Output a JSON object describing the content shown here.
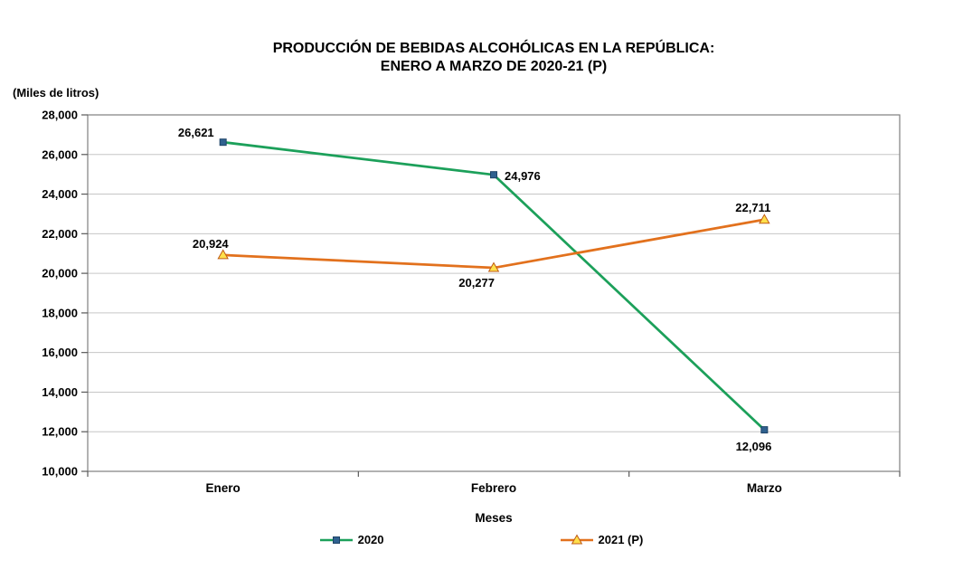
{
  "page": {
    "title_line1": "PRODUCCIÓN DE BEBIDAS ALCOHÓLICAS EN LA REPÚBLICA:",
    "title_line2": "ENERO A MARZO DE 2020-21 (P)",
    "unit_label": "(Miles de litros)"
  },
  "chart_data": {
    "type": "line",
    "title": "PRODUCCIÓN DE BEBIDAS ALCOHÓLICAS EN LA REPÚBLICA: ENERO A MARZO DE 2020-21 (P)",
    "unit": "(Miles de litros)",
    "xlabel": "Meses",
    "categories": [
      "Enero",
      "Febrero",
      "Marzo"
    ],
    "series": [
      {
        "name": "2020",
        "values": [
          26621,
          24976,
          12096
        ],
        "value_labels": [
          "26,621",
          "24,976",
          "12,096"
        ],
        "line_color": "#1CA05A",
        "marker": "square",
        "marker_fill": "#30618F",
        "marker_stroke": "#1F4468"
      },
      {
        "name": "2021 (P)",
        "values": [
          20924,
          20277,
          22711
        ],
        "value_labels": [
          "20,924",
          "20,277",
          "22,711"
        ],
        "line_color": "#E2711D",
        "marker": "triangle",
        "marker_fill": "#FFE04B",
        "marker_stroke": "#BF5B16"
      }
    ],
    "ylim": [
      10000,
      28000
    ],
    "ytick_step": 2000,
    "ytick_labels": [
      "10,000",
      "12,000",
      "14,000",
      "16,000",
      "18,000",
      "20,000",
      "22,000",
      "24,000",
      "26,000",
      "28,000"
    ],
    "grid": true,
    "legend_position": "bottom"
  }
}
